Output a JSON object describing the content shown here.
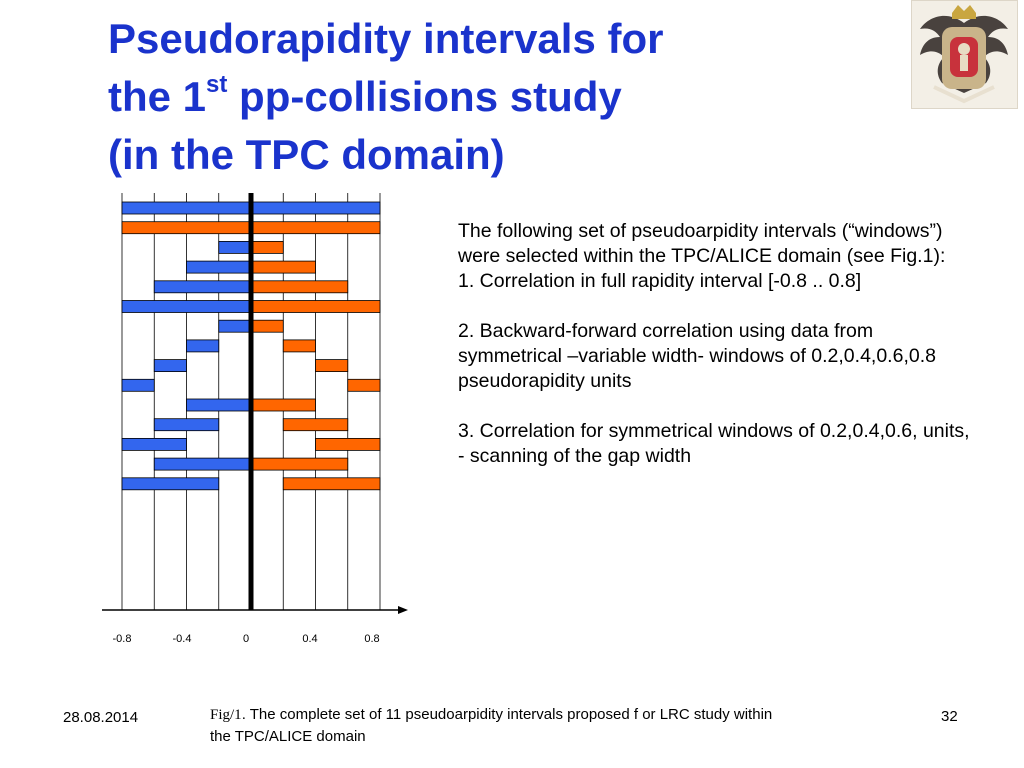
{
  "slide": {
    "title_line1": "Pseudorapidity intervals for",
    "title_line2_pre": "the 1",
    "title_sup": "st",
    "title_line2_post": " pp-collisions study",
    "title_line3": "(in the TPC domain)",
    "logo_icon": "double-headed-eagle-crest-icon"
  },
  "body": {
    "p1": "The following set of pseudoarpidity intervals (“windows”) were selected within the TPC/ALICE domain  (see Fig.1):",
    "p2": "1. Correlation in  full rapidity interval [-0.8 .. 0.8]",
    "p3": "2. Backward-forward correlation using data from symmetrical –variable width- windows of 0.2,0.4,0.6,0.8 pseudorapidity units",
    "p4": "3. Correlation for symmetrical windows of 0.2,0.4,0.6, units, - scanning  of the  gap width"
  },
  "footer": {
    "date": "28.08.2014",
    "caption_fig": "Fig/1",
    "caption_text": ". The  complete set of 11 pseudoarpidity intervals proposed f or LRC study within the TPC/ALICE domain",
    "page": "32"
  },
  "chart_data": {
    "type": "interval-diagram",
    "x_tick_labels": [
      "-0.8",
      "-0.4",
      "0",
      "0.4",
      "0.8"
    ],
    "x_ticks": [
      -0.8,
      -0.4,
      0,
      0.4,
      0.8
    ],
    "xlim": [
      -0.8,
      0.8
    ],
    "grid_step": 0.2,
    "colors": {
      "backward": "#3366ee",
      "forward": "#ff6600",
      "center_line": "#000000"
    },
    "rows": [
      {
        "backward": [
          -0.8,
          0.8
        ]
      },
      {
        "forward": [
          -0.8,
          0.8
        ]
      },
      {
        "backward": [
          -0.2,
          0.0
        ],
        "forward": [
          0.0,
          0.2
        ]
      },
      {
        "backward": [
          -0.4,
          0.0
        ],
        "forward": [
          0.0,
          0.4
        ]
      },
      {
        "backward": [
          -0.6,
          0.0
        ],
        "forward": [
          0.0,
          0.6
        ]
      },
      {
        "backward": [
          -0.8,
          0.0
        ],
        "forward": [
          0.0,
          0.8
        ]
      },
      {
        "backward": [
          -0.2,
          0.0
        ],
        "forward": [
          0.0,
          0.2
        ]
      },
      {
        "backward": [
          -0.4,
          -0.2
        ],
        "forward": [
          0.2,
          0.4
        ]
      },
      {
        "backward": [
          -0.6,
          -0.4
        ],
        "forward": [
          0.4,
          0.6
        ]
      },
      {
        "backward": [
          -0.8,
          -0.6
        ],
        "forward": [
          0.6,
          0.8
        ]
      },
      {
        "backward": [
          -0.4,
          0.0
        ],
        "forward": [
          0.0,
          0.4
        ]
      },
      {
        "backward": [
          -0.6,
          -0.2
        ],
        "forward": [
          0.2,
          0.6
        ]
      },
      {
        "backward": [
          -0.8,
          -0.4
        ],
        "forward": [
          0.4,
          0.8
        ]
      },
      {
        "backward": [
          -0.6,
          0.0
        ],
        "forward": [
          0.0,
          0.6
        ]
      },
      {
        "backward": [
          -0.8,
          -0.2
        ],
        "forward": [
          0.2,
          0.8
        ]
      }
    ]
  }
}
